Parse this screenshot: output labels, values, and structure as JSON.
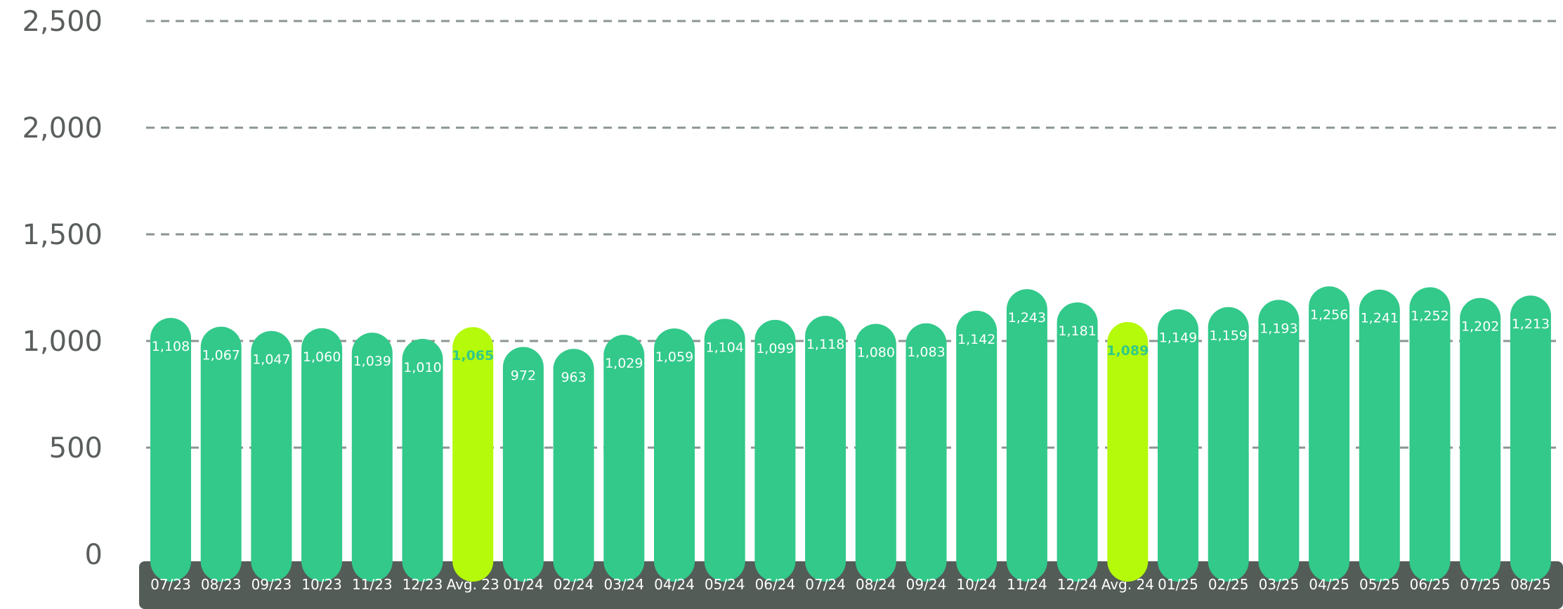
{
  "chart_data": {
    "type": "bar",
    "title": "",
    "xlabel": "",
    "ylabel": "",
    "ylim": [
      0,
      2500
    ],
    "yticks": [
      0,
      500,
      1000,
      1500,
      2000,
      2500
    ],
    "ytick_labels": [
      "0",
      "500",
      "1,000",
      "1,500",
      "2,000",
      "2,500"
    ],
    "grid": true,
    "categories": [
      "07/23",
      "08/23",
      "09/23",
      "10/23",
      "11/23",
      "12/23",
      "Avg. 23",
      "01/24",
      "02/24",
      "03/24",
      "04/24",
      "05/24",
      "06/24",
      "07/24",
      "08/24",
      "09/24",
      "10/24",
      "11/24",
      "12/24",
      "Avg. 24",
      "01/25",
      "02/25",
      "03/25",
      "04/25",
      "05/25",
      "06/25",
      "07/25",
      "08/25"
    ],
    "values": [
      1108,
      1067,
      1047,
      1060,
      1039,
      1010,
      1065,
      972,
      963,
      1029,
      1059,
      1104,
      1099,
      1118,
      1080,
      1083,
      1142,
      1243,
      1181,
      1089,
      1149,
      1159,
      1193,
      1256,
      1241,
      1252,
      1202,
      1213
    ],
    "value_labels": [
      "1,108",
      "1,067",
      "1,047",
      "1,060",
      "1,039",
      "1,010",
      "1,065",
      "972",
      "963",
      "1,029",
      "1,059",
      "1,104",
      "1,099",
      "1,118",
      "1,080",
      "1,083",
      "1,142",
      "1,243",
      "1,181",
      "1,089",
      "1,149",
      "1,159",
      "1,193",
      "1,256",
      "1,241",
      "1,252",
      "1,202",
      "1,213"
    ],
    "highlight": [
      false,
      false,
      false,
      false,
      false,
      false,
      true,
      false,
      false,
      false,
      false,
      false,
      false,
      false,
      false,
      false,
      false,
      false,
      false,
      true,
      false,
      false,
      false,
      false,
      false,
      false,
      false,
      false
    ],
    "colors": {
      "bar": "#32c98a",
      "bar_highlight": "#b4fa0a",
      "label_highlight": "#32c98a",
      "grid": "#8a9592",
      "axis_band": "#545c57",
      "tick_text": "#5a5f5c"
    }
  }
}
